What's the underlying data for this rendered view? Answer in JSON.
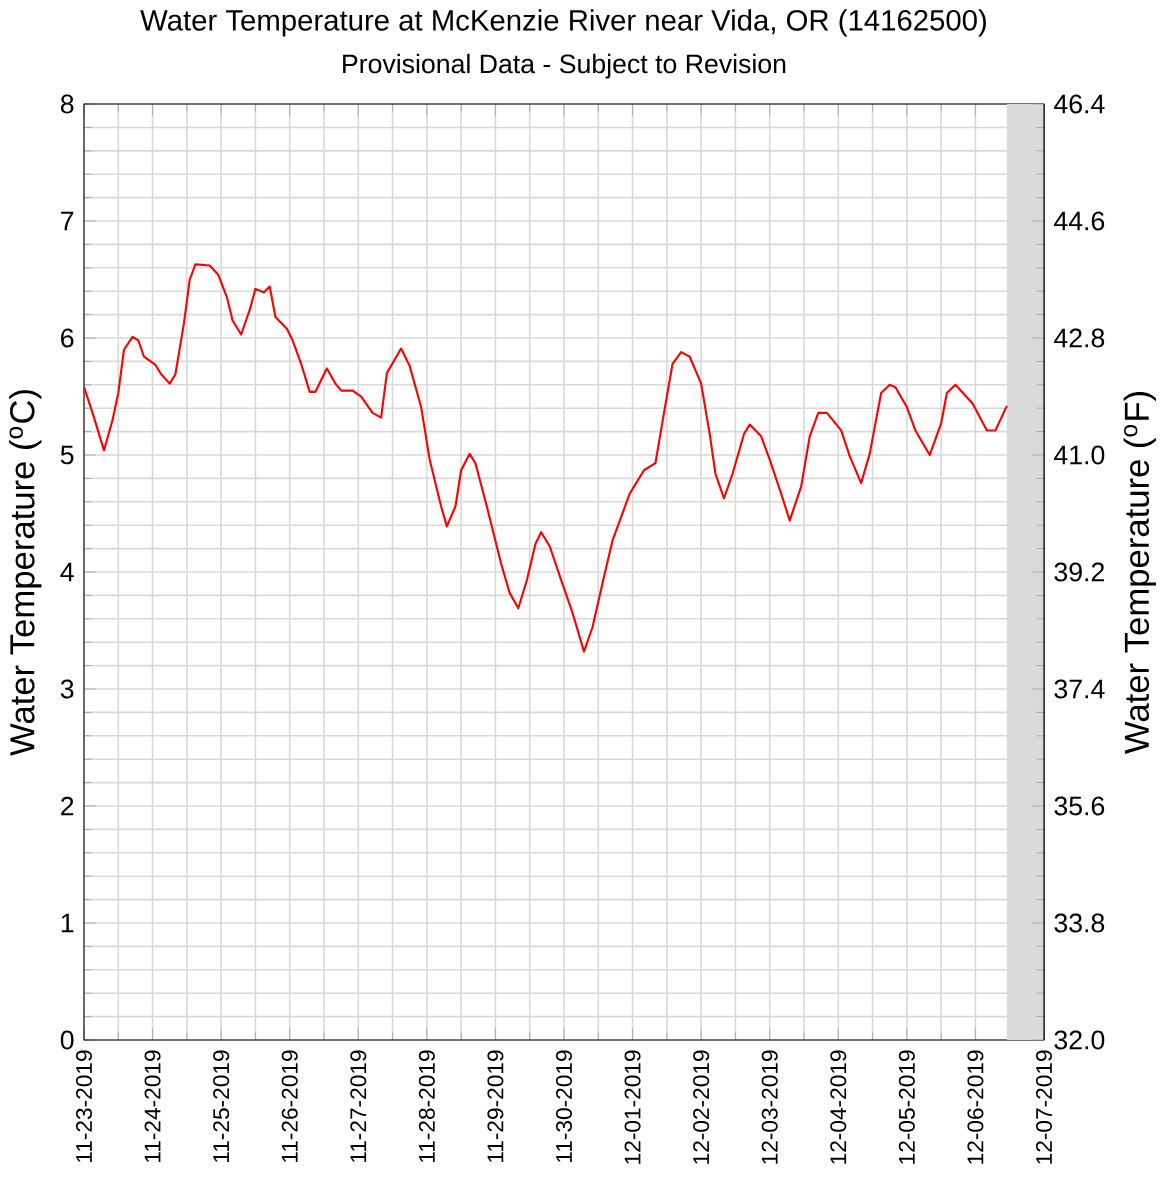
{
  "chart_data": {
    "type": "line",
    "title": "Water Temperature at McKenzie River near Vida, OR (14162500)",
    "subtitle": "Provisional Data - Subject to Revision",
    "ylabel": "Water Temperature ($^{o}$C)",
    "y2label": "Water Temperature ($^{o}$F)",
    "x": [
      "2019-11-23T00:00",
      "2019-11-23T03:00",
      "2019-11-23T07:00",
      "2019-11-23T10:00",
      "2019-11-23T12:00",
      "2019-11-23T14:00",
      "2019-11-23T17:00",
      "2019-11-23T19:00",
      "2019-11-23T21:00",
      "2019-11-24T01:00",
      "2019-11-24T03:00",
      "2019-11-24T06:00",
      "2019-11-24T08:00",
      "2019-11-24T11:00",
      "2019-11-24T13:00",
      "2019-11-24T15:00",
      "2019-11-24T20:00",
      "2019-11-24T23:00",
      "2019-11-25T02:00",
      "2019-11-25T04:00",
      "2019-11-25T07:00",
      "2019-11-25T10:00",
      "2019-11-25T12:00",
      "2019-11-25T15:00",
      "2019-11-25T17:00",
      "2019-11-25T19:00",
      "2019-11-25T23:00",
      "2019-11-26T01:00",
      "2019-11-26T04:00",
      "2019-11-26T07:00",
      "2019-11-26T09:00",
      "2019-11-26T13:00",
      "2019-11-26T16:00",
      "2019-11-26T18:00",
      "2019-11-26T22:00",
      "2019-11-27T01:00",
      "2019-11-27T05:00",
      "2019-11-27T08:00",
      "2019-11-27T10:00",
      "2019-11-27T15:00",
      "2019-11-27T18:00",
      "2019-11-27T22:00",
      "2019-11-28T01:00",
      "2019-11-28T05:00",
      "2019-11-28T07:00",
      "2019-11-28T10:00",
      "2019-11-28T12:00",
      "2019-11-28T15:00",
      "2019-11-28T17:00",
      "2019-11-28T21:00",
      "2019-11-29T02:00",
      "2019-11-29T05:00",
      "2019-11-29T08:00",
      "2019-11-29T11:00",
      "2019-11-29T14:00",
      "2019-11-29T16:00",
      "2019-11-29T19:00",
      "2019-11-29T23:00",
      "2019-11-30T03:00",
      "2019-11-30T07:00",
      "2019-11-30T10:00",
      "2019-11-30T14:00",
      "2019-11-30T17:00",
      "2019-11-30T23:00",
      "2019-12-01T04:00",
      "2019-12-01T08:00",
      "2019-12-01T11:00",
      "2019-12-01T14:00",
      "2019-12-01T17:00",
      "2019-12-01T20:00",
      "2019-12-02T00:00",
      "2019-12-02T03:00",
      "2019-12-02T05:00",
      "2019-12-02T08:00",
      "2019-12-02T11:00",
      "2019-12-02T15:00",
      "2019-12-02T17:00",
      "2019-12-02T21:00",
      "2019-12-03T00:00",
      "2019-12-03T04:00",
      "2019-12-03T07:00",
      "2019-12-03T11:00",
      "2019-12-03T14:00",
      "2019-12-03T17:00",
      "2019-12-03T20:00",
      "2019-12-04T01:00",
      "2019-12-04T04:00",
      "2019-12-04T08:00",
      "2019-12-04T11:00",
      "2019-12-04T15:00",
      "2019-12-04T18:00",
      "2019-12-04T20:00",
      "2019-12-05T00:00",
      "2019-12-05T03:00",
      "2019-12-05T08:00",
      "2019-12-05T12:00",
      "2019-12-05T14:00",
      "2019-12-05T17:00",
      "2019-12-05T23:00",
      "2019-12-06T04:00",
      "2019-12-06T07:00",
      "2019-12-06T11:00"
    ],
    "series": [
      {
        "color": "#ff0000",
        "values": [
          5.58,
          5.36,
          5.04,
          5.3,
          5.53,
          5.9,
          6.01,
          5.98,
          5.84,
          5.77,
          5.69,
          5.61,
          5.69,
          6.13,
          6.5,
          6.63,
          6.62,
          6.54,
          6.35,
          6.15,
          6.03,
          6.24,
          6.42,
          6.39,
          6.44,
          6.18,
          6.08,
          5.98,
          5.78,
          5.54,
          5.54,
          5.74,
          5.61,
          5.55,
          5.55,
          5.5,
          5.36,
          5.32,
          5.7,
          5.91,
          5.76,
          5.41,
          4.96,
          4.56,
          4.39,
          4.56,
          4.87,
          5.01,
          4.93,
          4.56,
          4.07,
          3.82,
          3.69,
          3.93,
          4.24,
          4.34,
          4.22,
          3.93,
          3.65,
          3.32,
          3.53,
          3.96,
          4.27,
          4.67,
          4.87,
          4.93,
          5.36,
          5.78,
          5.88,
          5.84,
          5.61,
          5.18,
          4.84,
          4.63,
          4.84,
          5.18,
          5.26,
          5.16,
          4.96,
          4.67,
          4.44,
          4.73,
          5.16,
          5.36,
          5.36,
          5.21,
          4.99,
          4.76,
          5.01,
          5.53,
          5.6,
          5.58,
          5.41,
          5.21,
          5.0,
          5.27,
          5.53,
          5.6,
          5.44,
          5.21,
          5.21,
          5.42
        ]
      }
    ],
    "xlim": [
      "2019-11-23",
      "2019-12-07"
    ],
    "xticks": [
      {
        "value": "2019-11-23",
        "label": "11-23-2019"
      },
      {
        "value": "2019-11-24",
        "label": "11-24-2019"
      },
      {
        "value": "2019-11-25",
        "label": "11-25-2019"
      },
      {
        "value": "2019-11-26",
        "label": "11-26-2019"
      },
      {
        "value": "2019-11-27",
        "label": "11-27-2019"
      },
      {
        "value": "2019-11-28",
        "label": "11-28-2019"
      },
      {
        "value": "2019-11-29",
        "label": "11-29-2019"
      },
      {
        "value": "2019-11-30",
        "label": "11-30-2019"
      },
      {
        "value": "2019-12-01",
        "label": "12-01-2019"
      },
      {
        "value": "2019-12-02",
        "label": "12-02-2019"
      },
      {
        "value": "2019-12-03",
        "label": "12-03-2019"
      },
      {
        "value": "2019-12-04",
        "label": "12-04-2019"
      },
      {
        "value": "2019-12-05",
        "label": "12-05-2019"
      },
      {
        "value": "2019-12-06",
        "label": "12-06-2019"
      },
      {
        "value": "2019-12-07",
        "label": "12-07-2019"
      }
    ],
    "ylim": [
      0,
      8
    ],
    "yticks": [
      0,
      1,
      2,
      3,
      4,
      5,
      6,
      7,
      8
    ],
    "y2lim": [
      32,
      46.4
    ],
    "y2ticks": [
      {
        "value": 32,
        "label": "32.0"
      },
      33.8,
      35.6,
      37.4,
      39.2,
      {
        "value": 41,
        "label": "41.0"
      },
      42.8,
      44.6,
      46.4
    ],
    "bands": [
      {
        "axis": "x",
        "from": "2019-12-06T11:00",
        "to": "2019-12-07",
        "color": "#d9d9d9"
      }
    ],
    "grid": true,
    "marker": "none",
    "line_style": "solid"
  }
}
